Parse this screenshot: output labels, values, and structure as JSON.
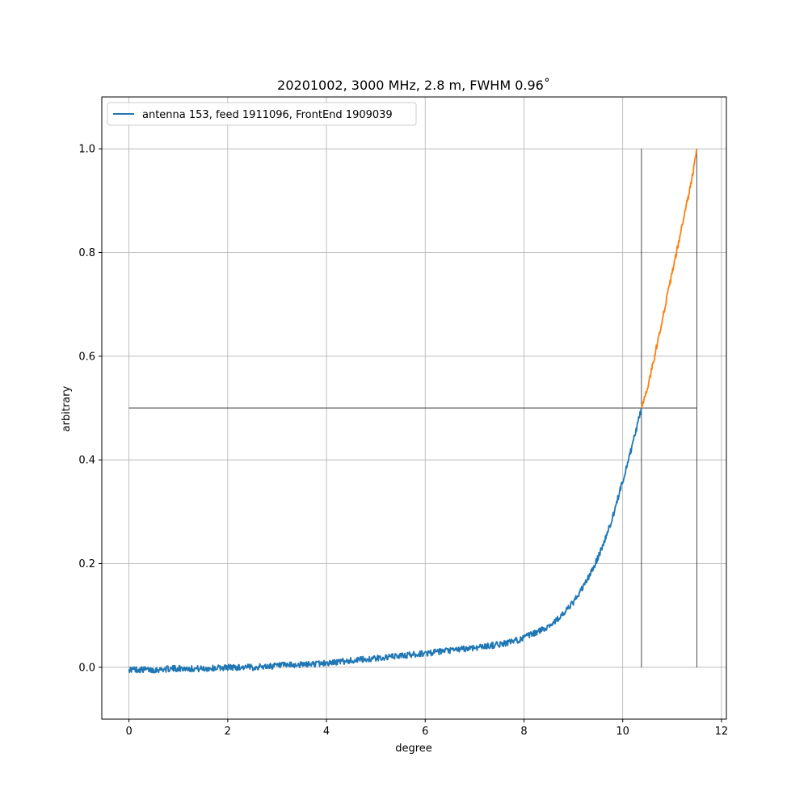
{
  "chart_data": {
    "type": "line",
    "title": "20201002, 3000 MHz, 2.8 m, FWHM 0.96˚",
    "xlabel": "degree",
    "ylabel": "arbitrary",
    "xlim": [
      -0.55,
      12.1
    ],
    "ylim": [
      -0.1,
      1.1
    ],
    "x_ticks": [
      0,
      2,
      4,
      6,
      8,
      10,
      12
    ],
    "y_ticks": [
      0.0,
      0.2,
      0.4,
      0.6,
      0.8,
      1.0
    ],
    "x_tick_labels": [
      "0",
      "2",
      "4",
      "6",
      "8",
      "10",
      "12"
    ],
    "y_tick_labels": [
      "0.0",
      "0.2",
      "0.4",
      "0.6",
      "0.8",
      "1.0"
    ],
    "grid": true,
    "legend_position": "top-left",
    "series": [
      {
        "name": "antenna 153, feed 1911096, FrontEnd 1909039",
        "color": "#1f77b4",
        "x": [
          0,
          0.5,
          1,
          1.5,
          2,
          2.5,
          3,
          3.5,
          4,
          4.5,
          5,
          5.5,
          6,
          6.5,
          7,
          7.5,
          7.8,
          8,
          8.2,
          8.4,
          8.6,
          8.8,
          9,
          9.2,
          9.4,
          9.6,
          9.8,
          10,
          10.2,
          10.38
        ],
        "y": [
          -0.004,
          -0.005,
          -0.002,
          -0.003,
          0.0,
          0.0,
          0.003,
          0.005,
          0.008,
          0.013,
          0.017,
          0.022,
          0.027,
          0.032,
          0.038,
          0.044,
          0.05,
          0.057,
          0.065,
          0.074,
          0.086,
          0.103,
          0.125,
          0.155,
          0.19,
          0.235,
          0.29,
          0.36,
          0.43,
          0.5
        ]
      },
      {
        "name": "",
        "color": "#ff7f0e",
        "x": [
          10.38,
          10.5,
          10.6,
          10.7,
          10.8,
          10.9,
          11.0,
          11.1,
          11.2,
          11.3,
          11.4,
          11.5
        ],
        "y": [
          0.5,
          0.54,
          0.58,
          0.625,
          0.67,
          0.715,
          0.76,
          0.805,
          0.85,
          0.895,
          0.94,
          1.0
        ]
      }
    ],
    "reference_lines": [
      {
        "orientation": "horizontal",
        "y": 0.5,
        "x_range": [
          0,
          11.5
        ],
        "color": "#000000"
      },
      {
        "orientation": "vertical",
        "x": 10.38,
        "y_range": [
          0,
          1.0
        ],
        "color": "#000000"
      },
      {
        "orientation": "vertical",
        "x": 11.5,
        "y_range": [
          0,
          1.0
        ],
        "color": "#000000"
      }
    ]
  }
}
